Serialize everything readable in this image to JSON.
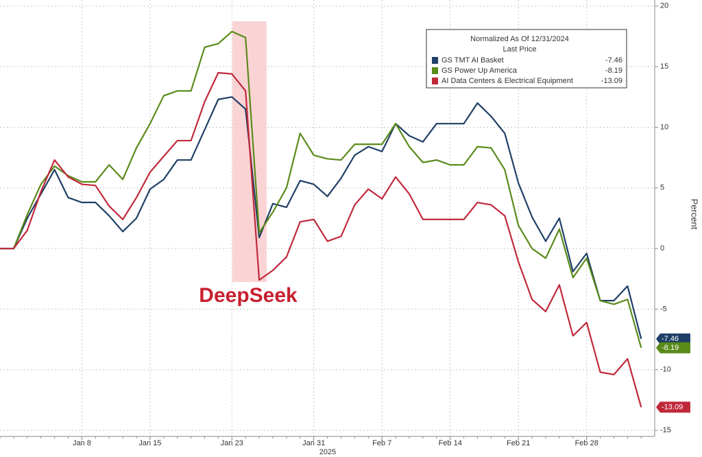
{
  "chart_data": {
    "type": "line",
    "legend_title": [
      "Normalized As Of 12/31/2024",
      "Last Price"
    ],
    "annotation": "DeepSeek",
    "xlabel": "2025",
    "ylabel": "Percent",
    "categories": [
      null,
      null,
      null,
      null,
      null,
      null,
      "Jan 8",
      null,
      null,
      null,
      null,
      "Jan 15",
      null,
      null,
      null,
      null,
      null,
      "Jan 23",
      null,
      null,
      null,
      null,
      null,
      "Jan 31",
      null,
      null,
      null,
      null,
      "Feb 7",
      null,
      null,
      null,
      null,
      "Feb 14",
      null,
      null,
      null,
      null,
      "Feb 21",
      null,
      null,
      null,
      null,
      "Feb 28",
      null,
      null,
      null,
      null
    ],
    "ylim": [
      -15.5,
      20.5
    ],
    "yticks": [
      20,
      15,
      10,
      5,
      0,
      -5,
      -10,
      -15
    ],
    "grid": true,
    "legend": "upper right",
    "series": [
      {
        "name": "GS TMT AI Basket",
        "color": "#1f3f66",
        "values": [
          0,
          0,
          2.5,
          4.5,
          6.5,
          4.2,
          3.8,
          3.8,
          2.7,
          1.4,
          2.5,
          4.9,
          5.7,
          7.3,
          7.3,
          9.8,
          12.3,
          12.5,
          11.5,
          0.9,
          3.7,
          3.4,
          5.6,
          5.3,
          4.3,
          5.8,
          7.7,
          8.4,
          8.0,
          10.3,
          9.3,
          8.8,
          10.3,
          10.3,
          10.3,
          12.0,
          10.9,
          9.5,
          5.4,
          2.6,
          0.6,
          2.5,
          -1.9,
          -0.4,
          -4.3,
          -4.3,
          -3.1,
          -7.46
        ]
      },
      {
        "name": "GS Power Up America",
        "color": "#5a8a1a",
        "values": [
          0,
          0,
          2.8,
          5.3,
          6.8,
          6.0,
          5.5,
          5.5,
          6.9,
          5.7,
          8.3,
          10.3,
          12.6,
          13.0,
          13.0,
          16.6,
          16.9,
          17.9,
          17.4,
          1.3,
          3.0,
          5.0,
          9.5,
          7.7,
          7.4,
          7.3,
          8.6,
          8.6,
          8.6,
          10.3,
          8.4,
          7.1,
          7.3,
          6.9,
          6.9,
          8.4,
          8.3,
          6.5,
          1.9,
          0,
          -0.8,
          1.6,
          -2.4,
          -0.8,
          -4.3,
          -4.6,
          -4.2,
          -8.19
        ]
      },
      {
        "name": "AI Data Centers & Electrical Equipment",
        "color": "#c0283a",
        "values": [
          0,
          0,
          1.5,
          4.7,
          7.3,
          5.9,
          5.3,
          5.2,
          3.5,
          2.4,
          4.2,
          6.3,
          7.6,
          8.9,
          8.9,
          12.1,
          14.5,
          14.4,
          13.0,
          -2.6,
          -1.8,
          -0.7,
          2.2,
          2.4,
          0.6,
          1.0,
          3.6,
          4.9,
          4.1,
          5.9,
          4.5,
          2.4,
          2.4,
          2.4,
          2.4,
          3.8,
          3.6,
          2.7,
          -1.1,
          -4.2,
          -5.2,
          -3.0,
          -7.2,
          -6.1,
          -10.2,
          -10.4,
          -9.1,
          -13.09
        ]
      }
    ]
  }
}
